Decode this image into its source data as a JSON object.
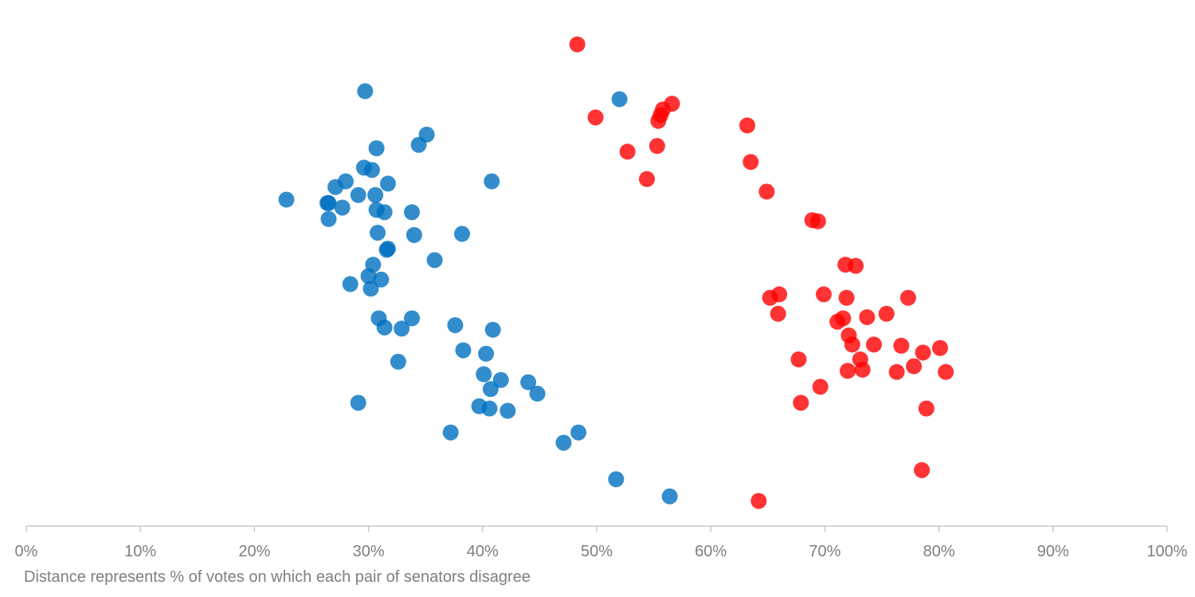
{
  "chart_data": {
    "type": "scatter",
    "title": "",
    "xlabel": "Distance represents % of votes on which each pair of senators disagree",
    "ylabel": "",
    "xlim": [
      0,
      100
    ],
    "ylim": [
      0,
      45
    ],
    "x_ticks": [
      "0%",
      "10%",
      "20%",
      "30%",
      "40%",
      "50%",
      "60%",
      "70%",
      "80%",
      "90%",
      "100%"
    ],
    "grid": false,
    "legend": "none",
    "series": [
      {
        "color": "#0070C0",
        "points": [
          [
            29.7,
            38.1
          ],
          [
            52.0,
            37.4
          ],
          [
            35.1,
            34.3
          ],
          [
            34.4,
            33.4
          ],
          [
            30.7,
            33.1
          ],
          [
            29.6,
            31.4
          ],
          [
            30.3,
            31.2
          ],
          [
            28.0,
            30.2
          ],
          [
            31.7,
            30.0
          ],
          [
            40.8,
            30.2
          ],
          [
            27.1,
            29.7
          ],
          [
            29.1,
            29.0
          ],
          [
            30.6,
            29.0
          ],
          [
            22.8,
            28.6
          ],
          [
            26.4,
            28.3
          ],
          [
            26.5,
            28.3
          ],
          [
            27.7,
            27.9
          ],
          [
            30.7,
            27.7
          ],
          [
            31.4,
            27.5
          ],
          [
            33.8,
            27.5
          ],
          [
            26.5,
            26.9
          ],
          [
            30.8,
            25.7
          ],
          [
            34.0,
            25.5
          ],
          [
            38.2,
            25.6
          ],
          [
            31.7,
            24.3
          ],
          [
            31.6,
            24.2
          ],
          [
            35.8,
            23.3
          ],
          [
            30.4,
            22.9
          ],
          [
            30.0,
            21.9
          ],
          [
            31.1,
            21.6
          ],
          [
            28.4,
            21.2
          ],
          [
            30.2,
            20.8
          ],
          [
            30.9,
            18.2
          ],
          [
            33.8,
            18.2
          ],
          [
            31.4,
            17.4
          ],
          [
            32.9,
            17.3
          ],
          [
            37.6,
            17.6
          ],
          [
            40.9,
            17.2
          ],
          [
            38.3,
            15.4
          ],
          [
            40.3,
            15.1
          ],
          [
            32.6,
            14.4
          ],
          [
            40.1,
            13.3
          ],
          [
            41.6,
            12.8
          ],
          [
            44.0,
            12.6
          ],
          [
            40.7,
            12.0
          ],
          [
            44.8,
            11.6
          ],
          [
            29.1,
            10.8
          ],
          [
            39.7,
            10.5
          ],
          [
            40.6,
            10.3
          ],
          [
            42.2,
            10.1
          ],
          [
            37.2,
            8.2
          ],
          [
            48.4,
            8.2
          ],
          [
            47.1,
            7.3
          ],
          [
            51.7,
            4.1
          ],
          [
            56.4,
            2.6
          ]
        ]
      },
      {
        "color": "#FF0000",
        "points": [
          [
            48.3,
            42.2
          ],
          [
            56.6,
            37.0
          ],
          [
            55.8,
            36.5
          ],
          [
            55.6,
            36.0
          ],
          [
            55.4,
            35.5
          ],
          [
            49.9,
            35.8
          ],
          [
            63.2,
            35.1
          ],
          [
            55.3,
            33.3
          ],
          [
            52.7,
            32.8
          ],
          [
            63.5,
            31.9
          ],
          [
            54.4,
            30.4
          ],
          [
            64.9,
            29.3
          ],
          [
            68.9,
            26.8
          ],
          [
            69.4,
            26.7
          ],
          [
            71.8,
            22.9
          ],
          [
            72.7,
            22.8
          ],
          [
            66.0,
            20.3
          ],
          [
            65.2,
            20.0
          ],
          [
            69.9,
            20.3
          ],
          [
            71.9,
            20.0
          ],
          [
            77.3,
            20.0
          ],
          [
            65.9,
            18.6
          ],
          [
            75.4,
            18.6
          ],
          [
            73.7,
            18.3
          ],
          [
            71.6,
            18.2
          ],
          [
            71.1,
            17.9
          ],
          [
            72.1,
            16.7
          ],
          [
            72.4,
            15.9
          ],
          [
            74.3,
            15.9
          ],
          [
            76.7,
            15.8
          ],
          [
            80.1,
            15.6
          ],
          [
            78.6,
            15.2
          ],
          [
            67.7,
            14.6
          ],
          [
            73.1,
            14.6
          ],
          [
            77.8,
            14.0
          ],
          [
            72.0,
            13.6
          ],
          [
            73.3,
            13.7
          ],
          [
            76.3,
            13.5
          ],
          [
            80.6,
            13.5
          ],
          [
            69.6,
            12.2
          ],
          [
            67.9,
            10.8
          ],
          [
            78.9,
            10.3
          ],
          [
            78.5,
            4.9
          ],
          [
            64.2,
            2.2
          ]
        ]
      }
    ]
  }
}
